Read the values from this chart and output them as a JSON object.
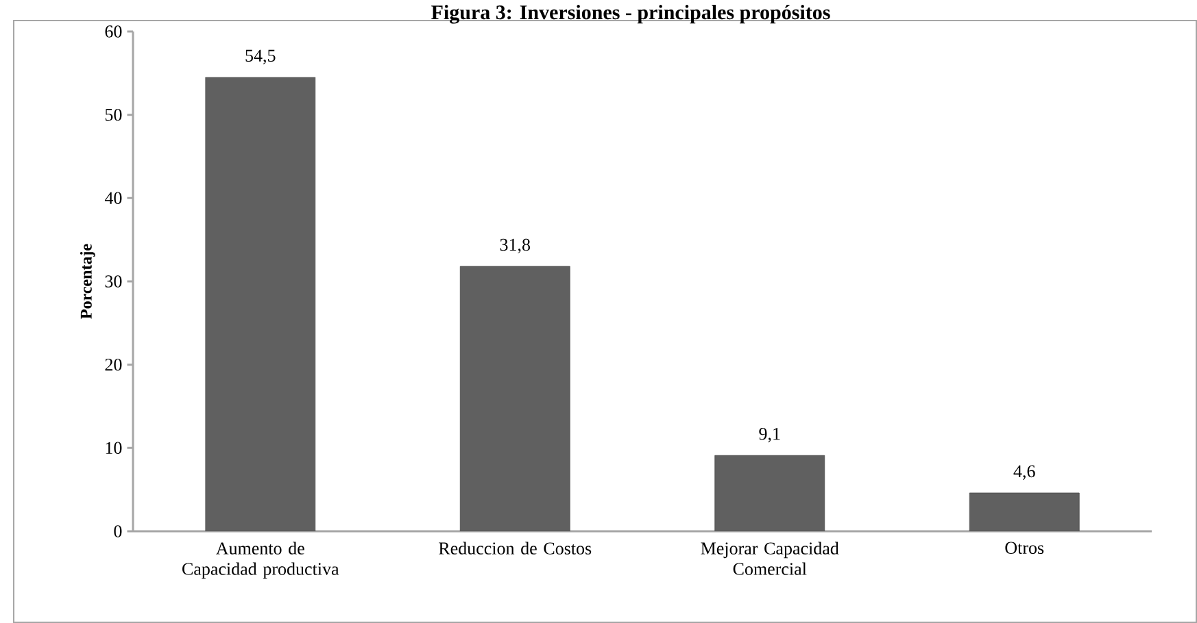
{
  "chart_data": {
    "type": "bar",
    "title": "Figura 3: Inversiones - principales propósitos",
    "ylabel": "Porcentaje",
    "categories": [
      "Aumento de Capacidad productiva",
      "Reduccion de Costos",
      "Mejorar Capacidad Comercial",
      "Otros"
    ],
    "values": [
      54.5,
      31.8,
      9.1,
      4.6
    ],
    "color": "#606060",
    "data_labels": true,
    "value_labels": [
      "54,5",
      "31,8",
      "9,1",
      "4,6"
    ],
    "ylim": [
      0,
      60
    ],
    "yticks": [
      0,
      10,
      20,
      30,
      40,
      50,
      60
    ],
    "grid": false
  }
}
